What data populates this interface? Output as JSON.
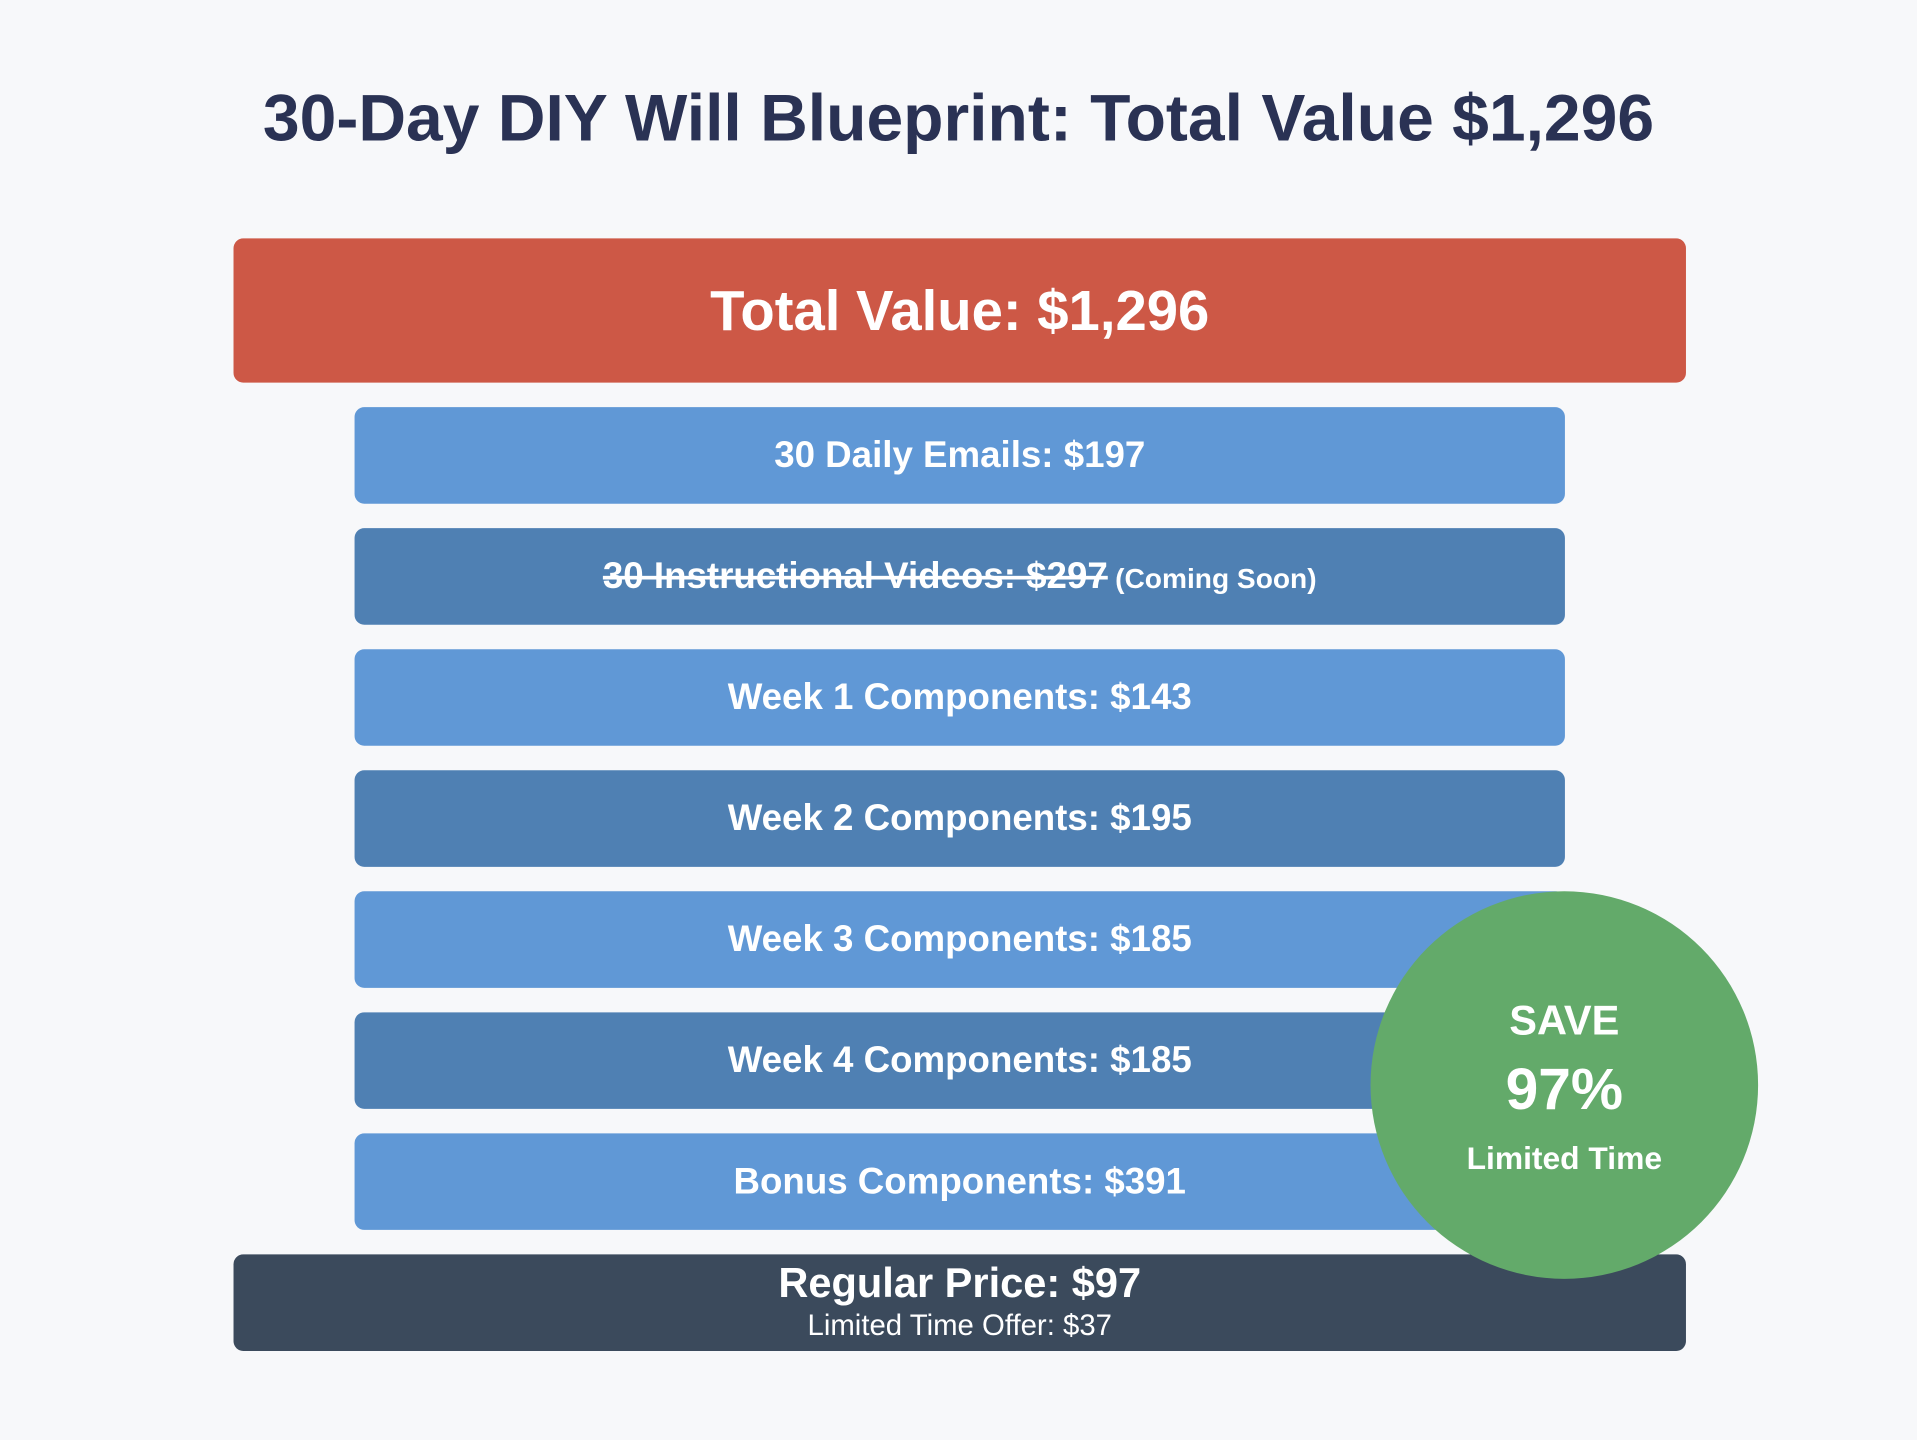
{
  "title": "30-Day DIY Will Blueprint: Total Value $1,296",
  "total": {
    "label": "Total Value: $1,296",
    "color": "#cd5846"
  },
  "items": [
    {
      "label": "30 Daily Emails: $197",
      "struck": false,
      "note": ""
    },
    {
      "label": "30 Instructional Videos: $297",
      "struck": true,
      "note": "(Coming Soon)"
    },
    {
      "label": "Week 1 Components: $143",
      "struck": false,
      "note": ""
    },
    {
      "label": "Week 2 Components: $195",
      "struck": false,
      "note": ""
    },
    {
      "label": "Week 3 Components: $185",
      "struck": false,
      "note": ""
    },
    {
      "label": "Week 4 Components: $185",
      "struck": false,
      "note": ""
    },
    {
      "label": "Bonus Components: $391",
      "struck": false,
      "note": ""
    }
  ],
  "item_colors": [
    "#6098d6",
    "#4f80b3"
  ],
  "price": {
    "regular": "Regular Price: $97",
    "offer": "Limited Time Offer: $37",
    "color": "#3b4a5c"
  },
  "badge": {
    "top": "SAVE",
    "percent": "97%",
    "bottom": "Limited Time",
    "color": "#63aa6a"
  }
}
